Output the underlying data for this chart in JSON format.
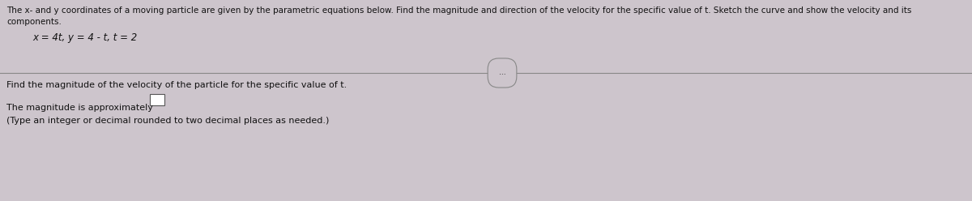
{
  "background_color": "#cdc5cc",
  "line_color": "#888888",
  "text_color": "#111111",
  "title_line1": "The x- and y coordinates of a moving particle are given by the parametric equations below. Find the magnitude and direction of the velocity for the specific value of t. Sketch the curve and show the velocity and its",
  "title_line2": "components.",
  "equation_text": "x = 4t, y = 4 - t, t = 2",
  "question_text": "Find the magnitude of the velocity of the particle for the specific value of t.",
  "answer_label": "The magnitude is approximately",
  "note_text": "(Type an integer or decimal rounded to two decimal places as needed.)",
  "ellipsis_text": "...",
  "title_fontsize": 7.5,
  "eq_fontsize": 8.5,
  "question_fontsize": 8.0,
  "answer_fontsize": 8.0,
  "note_fontsize": 8.0,
  "figwidth": 12.0,
  "figheight": 2.48,
  "dpi": 100
}
